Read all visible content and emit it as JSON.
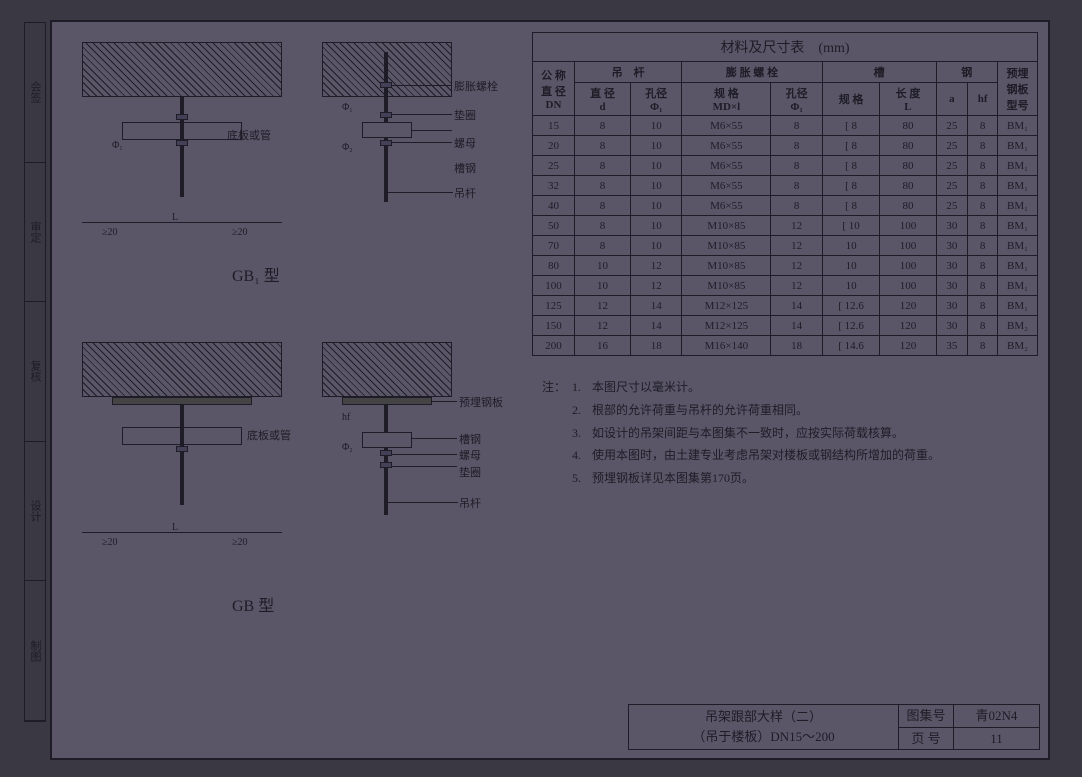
{
  "table": {
    "title": "材料及尺寸表　(mm)",
    "header_groups": [
      {
        "label": "公 称 直 径 DN",
        "sub": null
      },
      {
        "label": "吊　杆",
        "sub": [
          "直 径 d",
          "孔径 Φ₁"
        ]
      },
      {
        "label": "膨 胀 螺 栓",
        "sub": [
          "规 格 MD×l",
          "孔径 Φ₁"
        ]
      },
      {
        "label": "槽",
        "sub": [
          "规 格",
          "长 度 L"
        ]
      },
      {
        "label": "钢",
        "sub": [
          "a",
          "hf"
        ]
      },
      {
        "label": "预埋钢板型号",
        "sub": null
      }
    ],
    "rows": [
      [
        "15",
        "8",
        "10",
        "M6×55",
        "8",
        "[ 8",
        "80",
        "25",
        "8",
        "BM₁"
      ],
      [
        "20",
        "8",
        "10",
        "M6×55",
        "8",
        "[ 8",
        "80",
        "25",
        "8",
        "BM₁"
      ],
      [
        "25",
        "8",
        "10",
        "M6×55",
        "8",
        "[ 8",
        "80",
        "25",
        "8",
        "BM₁"
      ],
      [
        "32",
        "8",
        "10",
        "M6×55",
        "8",
        "[ 8",
        "80",
        "25",
        "8",
        "BM₁"
      ],
      [
        "40",
        "8",
        "10",
        "M6×55",
        "8",
        "[ 8",
        "80",
        "25",
        "8",
        "BM₁"
      ],
      [
        "50",
        "8",
        "10",
        "M10×85",
        "12",
        "[ 10",
        "100",
        "30",
        "8",
        "BM₁"
      ],
      [
        "70",
        "8",
        "10",
        "M10×85",
        "12",
        "10",
        "100",
        "30",
        "8",
        "BM₁"
      ],
      [
        "80",
        "10",
        "12",
        "M10×85",
        "12",
        "10",
        "100",
        "30",
        "8",
        "BM₁"
      ],
      [
        "100",
        "10",
        "12",
        "M10×85",
        "12",
        "10",
        "100",
        "30",
        "8",
        "BM₁"
      ],
      [
        "125",
        "12",
        "14",
        "M12×125",
        "14",
        "[ 12.6",
        "120",
        "30",
        "8",
        "BM₁"
      ],
      [
        "150",
        "12",
        "14",
        "M12×125",
        "14",
        "[ 12.6",
        "120",
        "30",
        "8",
        "BM₂"
      ],
      [
        "200",
        "16",
        "18",
        "M16×140",
        "18",
        "[ 14.6",
        "120",
        "35",
        "8",
        "BM₂"
      ]
    ]
  },
  "notes": {
    "label": "注：",
    "items": [
      "本图尺寸以毫米计。",
      "根部的允许荷重与吊杆的允许荷重相同。",
      "如设计的吊架间距与本图集不一致时，应按实际荷载核算。",
      "使用本图时，由土建专业考虑吊架对楼板或钢结构所增加的荷重。",
      "预埋钢板详见本图集第170页。"
    ]
  },
  "diagrams": {
    "gb_label_top": "GB₁ 型",
    "gb_label_bottom": "GB 型",
    "labels": {
      "pz": "膨胀螺栓",
      "dq": "垫圈",
      "lm": "螺母",
      "cg": "槽钢",
      "dg": "吊杆",
      "ymgb": "预埋钢板",
      "dbgh": "底板或管"
    },
    "dims": {
      "l": "L",
      "ge20": "≥20",
      "phi1": "Φ₁",
      "phi2": "Φ₂",
      "hf": "hf",
      "a": "a"
    }
  },
  "titleblock": {
    "title_line1": "吊架跟部大样（二）",
    "title_line2": "（吊于楼板）DN15～200",
    "series_k": "图集号",
    "series_v": "青02N4",
    "page_k": "页 号",
    "page_v": "11"
  },
  "side_labels": [
    "会签",
    "审定",
    "复核",
    "设计",
    "制图"
  ],
  "colors": {
    "page_bg": "#5a5668",
    "line": "#1e1c26",
    "outer": "#3a3842"
  }
}
